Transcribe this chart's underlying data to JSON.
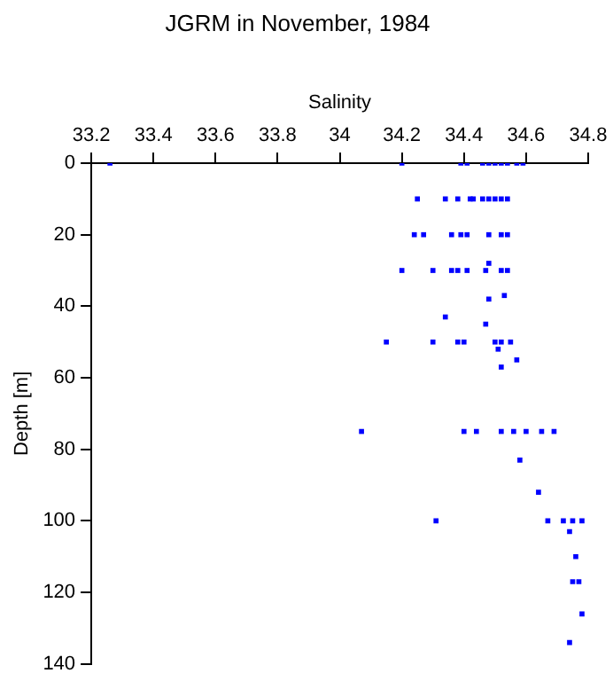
{
  "chart_data": {
    "type": "scatter",
    "title": "JGRM in November, 1984",
    "xlabel": "Salinity",
    "ylabel": "Depth [m]",
    "xlim": [
      33.2,
      34.8
    ],
    "xticks": [
      33.2,
      33.4,
      33.6,
      33.8,
      34,
      34.2,
      34.4,
      34.6,
      34.8
    ],
    "ylim": [
      140,
      0
    ],
    "yticks": [
      0,
      20,
      40,
      60,
      80,
      100,
      120,
      140
    ],
    "grid": false,
    "legend": false,
    "marker": "square",
    "series": [
      {
        "color": "#0000ff",
        "x": [
          33.26,
          34.2,
          34.39,
          34.41,
          34.46,
          34.48,
          34.5,
          34.52,
          34.54,
          34.57,
          34.59,
          34.25,
          34.34,
          34.38,
          34.42,
          34.43,
          34.46,
          34.48,
          34.5,
          34.52,
          34.54,
          34.24,
          34.27,
          34.36,
          34.39,
          34.41,
          34.48,
          34.52,
          34.54,
          34.48,
          34.2,
          34.3,
          34.36,
          34.38,
          34.41,
          34.47,
          34.52,
          34.54,
          34.53,
          34.48,
          34.34,
          34.47,
          34.15,
          34.3,
          34.38,
          34.4,
          34.5,
          34.52,
          34.55,
          34.51,
          34.57,
          34.52,
          34.07,
          34.4,
          34.44,
          34.52,
          34.56,
          34.6,
          34.65,
          34.69,
          34.58,
          34.64,
          34.31,
          34.67,
          34.72,
          34.75,
          34.78,
          34.74,
          34.76,
          34.75,
          34.77,
          34.78,
          34.74
        ],
        "values": [
          0,
          0,
          0,
          0,
          0,
          0,
          0,
          0,
          0,
          0,
          0,
          10,
          10,
          10,
          10,
          10,
          10,
          10,
          10,
          10,
          10,
          20,
          20,
          20,
          20,
          20,
          20,
          20,
          20,
          28,
          30,
          30,
          30,
          30,
          30,
          30,
          30,
          30,
          37,
          38,
          43,
          45,
          50,
          50,
          50,
          50,
          50,
          50,
          50,
          52,
          55,
          57,
          75,
          75,
          75,
          75,
          75,
          75,
          75,
          75,
          83,
          92,
          100,
          100,
          100,
          100,
          100,
          103,
          110,
          117,
          117,
          126,
          134
        ]
      }
    ]
  }
}
